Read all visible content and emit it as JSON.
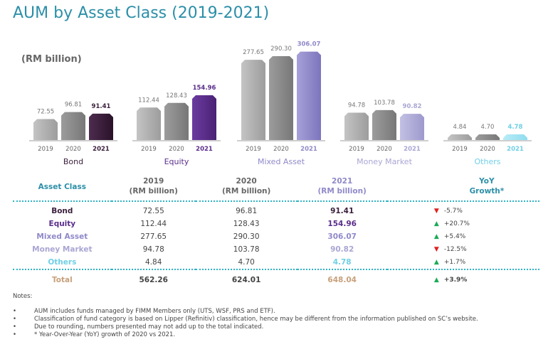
{
  "title": "AUM by Asset Class (2019-2021)",
  "unit_label": "(RM billion)",
  "colors": {
    "title": "#2c8fa8",
    "bond": "#3a1f3b",
    "equity": "#5a2d8a",
    "mixed": "#8f89c9",
    "money": "#a9a6d4",
    "others": "#6fcfe6",
    "gray_light": "#b3b3b3",
    "gray_dark": "#8c8c8c",
    "total": "#c8a07a",
    "up": "#1aaa55",
    "down": "#e02020"
  },
  "chart_data": {
    "type": "bar",
    "title": "AUM by Asset Class (2019-2021)",
    "ylabel": "(RM billion)",
    "years": [
      "2019",
      "2020",
      "2021"
    ],
    "groups": [
      {
        "name": "Bond",
        "values": [
          72.55,
          96.81,
          91.41
        ],
        "labels": [
          "72.55",
          "96.81",
          "91.41"
        ]
      },
      {
        "name": "Equity",
        "values": [
          112.44,
          128.43,
          154.96
        ],
        "labels": [
          "112.44",
          "128.43",
          "154.96"
        ]
      },
      {
        "name": "Mixed Asset",
        "values": [
          277.65,
          290.3,
          306.07
        ],
        "labels": [
          "277.65",
          "290.30",
          "306.07"
        ]
      },
      {
        "name": "Money Market",
        "values": [
          94.78,
          103.78,
          90.82
        ],
        "labels": [
          "94.78",
          "103.78",
          "90.82"
        ]
      },
      {
        "name": "Others",
        "values": [
          4.84,
          4.7,
          4.78
        ],
        "labels": [
          "4.84",
          "4.70",
          "4.78"
        ]
      }
    ],
    "ylim": [
      0,
      310
    ]
  },
  "table": {
    "headers": {
      "asset_class": "Asset Class",
      "y2019": "2019\n(RM billion)",
      "y2020": "2020\n(RM billion)",
      "y2021": "2021\n(RM billion)",
      "yoy": "YoY\nGrowth*"
    },
    "rows": [
      {
        "name": "Bond",
        "v2019": "72.55",
        "v2020": "96.81",
        "v2021": "91.41",
        "yoy": "-5.7%",
        "dir": "down"
      },
      {
        "name": "Equity",
        "v2019": "112.44",
        "v2020": "128.43",
        "v2021": "154.96",
        "yoy": "+20.7%",
        "dir": "up"
      },
      {
        "name": "Mixed Asset",
        "v2019": "277.65",
        "v2020": "290.30",
        "v2021": "306.07",
        "yoy": "+5.4%",
        "dir": "up"
      },
      {
        "name": "Money Market",
        "v2019": "94.78",
        "v2020": "103.78",
        "v2021": "90.82",
        "yoy": "-12.5%",
        "dir": "down"
      },
      {
        "name": "Others",
        "v2019": "4.84",
        "v2020": "4.70",
        "v2021": "4.78",
        "yoy": "+1.7%",
        "dir": "up"
      }
    ],
    "total": {
      "name": "Total",
      "v2019": "562.26",
      "v2020": "624.01",
      "v2021": "648.04",
      "yoy": "+3.9%",
      "dir": "up"
    }
  },
  "notes": {
    "title": "Notes:",
    "items": [
      "AUM includes funds managed by FIMM Members only (UTS, WSF, PRS and ETF).",
      "Classification of fund category is based on Lipper (Refinitiv) classification, hence may be different from the information published on SC’s website.",
      "Due to rounding, numbers presented may not add up to the total indicated.",
      "* Year-Over-Year (YoY) growth of 2020 vs 2021."
    ]
  }
}
